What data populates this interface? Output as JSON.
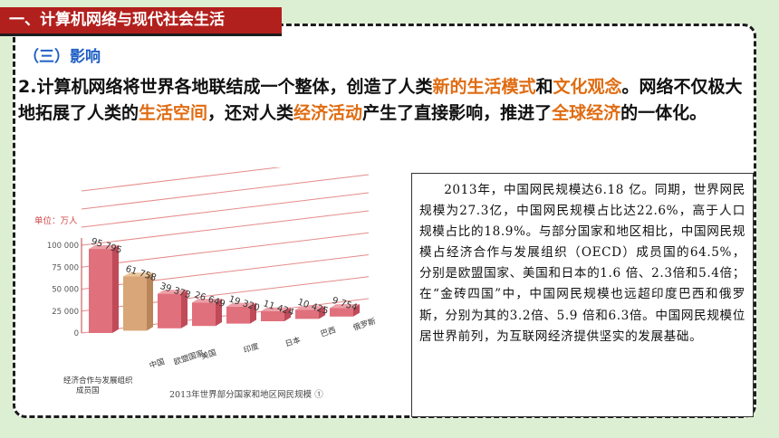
{
  "header": {
    "title": "一、计算机网络与现代社会生活"
  },
  "section": {
    "subheading": "（三）影响"
  },
  "paragraph": {
    "p1": "2.计算机网络将世界各地联结成一个整体，创造了人类",
    "h1": "新的生活模式",
    "p2": "和",
    "h2": "文化观念",
    "p3": "。网络不仅极大地拓展了人类的",
    "h3": "生活空间",
    "p4": "，还对人类",
    "h4": "经济活动",
    "p5": "产生了直接影响，推进了",
    "h5": "全球经济",
    "p6": "的一体化。"
  },
  "colors": {
    "highlight": "#e06c12",
    "title_bg": "#b2201d",
    "background": "#ddefd3"
  },
  "chart_data": {
    "type": "bar",
    "title": "2013年世界部分国家和地区网民规模 ①",
    "unit_label": "单位：万人",
    "categories": [
      "经济合作与发展组织成员国",
      "中国",
      "欧盟国家",
      "美国",
      "印度",
      "日本",
      "巴西",
      "俄罗斯"
    ],
    "values": [
      95795,
      61758,
      39373,
      26649,
      19320,
      11424,
      10425,
      9754
    ],
    "value_labels": [
      "95 795",
      "61 758",
      "39 373",
      "26 649",
      "19 320",
      "11 424",
      "10 425",
      "9 754"
    ],
    "yticks": [
      "100 000",
      "75 000",
      "50 000",
      "25 000",
      "0"
    ],
    "ylim": [
      0,
      100000
    ],
    "highlight_index": 1,
    "colors": {
      "bar": "#e0707c",
      "highlight": "#d8a678",
      "grid": "#e68a8a"
    }
  },
  "note": {
    "text": "2013年，中国网民规模达6.18 亿。同期，世界网民规模为27.3亿，中国网民规模占比达22.6%，高于人口规模占比的18.9%。与部分国家和地区相比，中国网民规模占经济合作与发展组织（OECD）成员国的64.5%，分别是欧盟国家、美国和日本的1.6 倍、2.3倍和5.4倍；在“金砖四国”中，中国网民规模也远超印度巴西和俄罗斯，分别为其的3.2倍、5.9 倍和6.3倍。中国网民规模位居世界前列，为互联网经济提供坚实的发展基础。"
  }
}
